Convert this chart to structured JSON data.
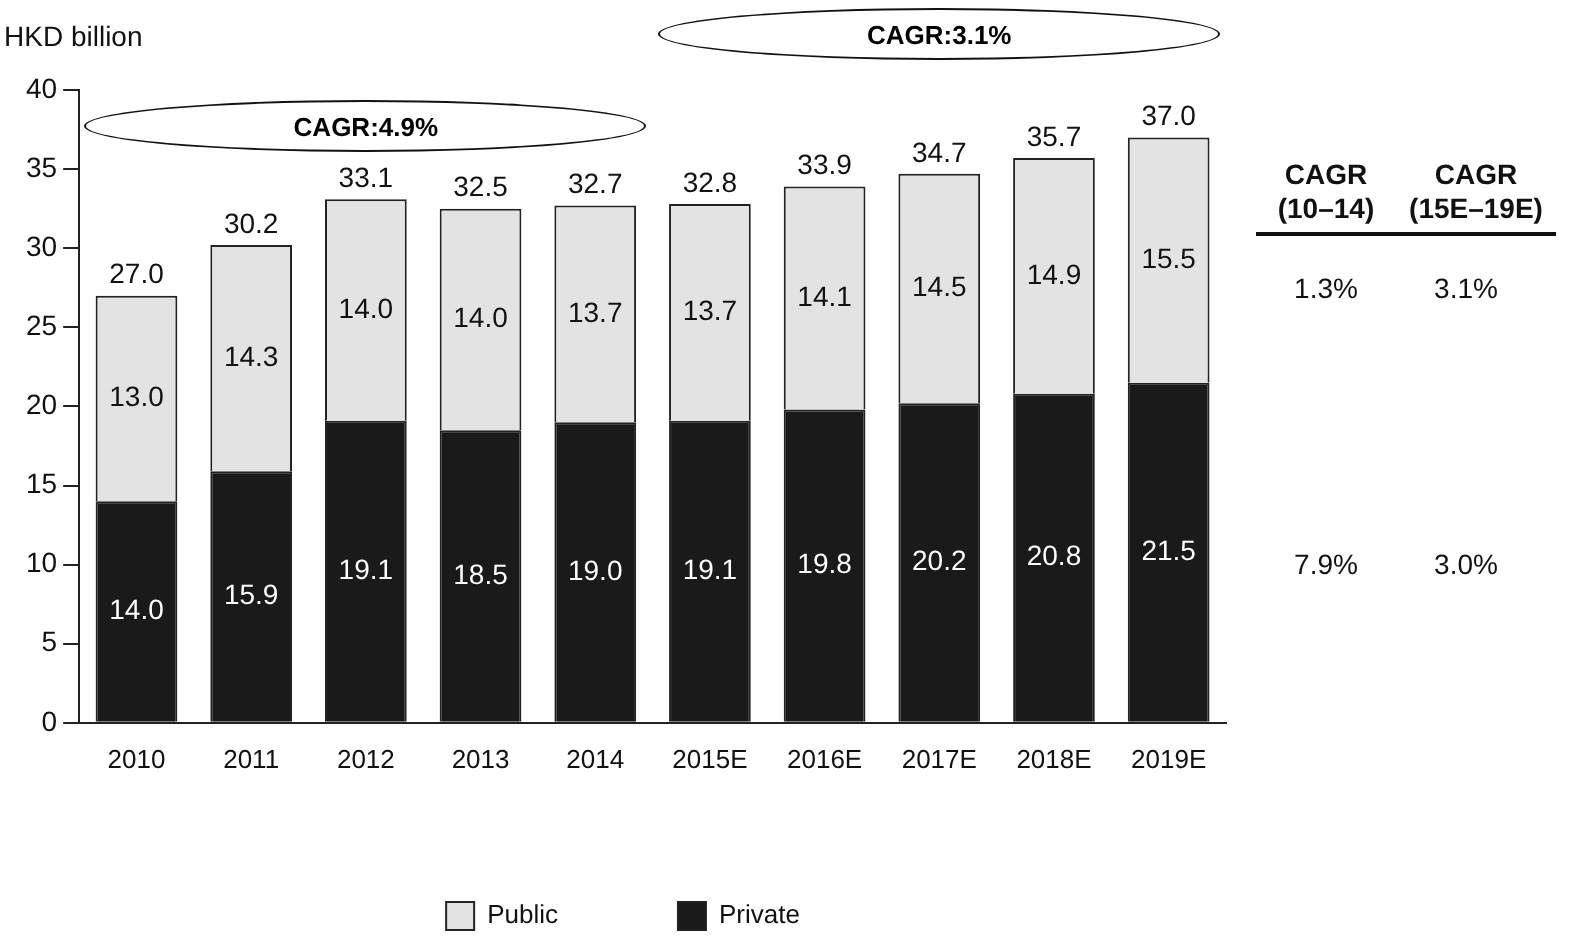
{
  "chart_data": {
    "type": "bar",
    "stacked": true,
    "ylabel": "HKD billion",
    "categories": [
      "2010",
      "2011",
      "2012",
      "2013",
      "2014",
      "2015E",
      "2016E",
      "2017E",
      "2018E",
      "2019E"
    ],
    "series": [
      {
        "name": "Private",
        "color": "#1a1a1a",
        "values": [
          14.0,
          15.9,
          19.1,
          18.5,
          19.0,
          19.1,
          19.8,
          20.2,
          20.8,
          21.5
        ],
        "value_labels": [
          "14.0",
          "15.9",
          "19.1",
          "18.5",
          "19.0",
          "19.1",
          "19.8",
          "20.2",
          "20.8",
          "21.5"
        ]
      },
      {
        "name": "Public",
        "color": "#e3e3e3",
        "values": [
          13.0,
          14.3,
          14.0,
          14.0,
          13.7,
          13.7,
          14.1,
          14.5,
          14.9,
          15.5
        ],
        "value_labels": [
          "13.0",
          "14.3",
          "14.0",
          "14.0",
          "13.7",
          "13.7",
          "14.1",
          "14.5",
          "14.9",
          "15.5"
        ]
      }
    ],
    "totals": [
      "27.0",
      "30.2",
      "33.1",
      "32.5",
      "32.7",
      "32.8",
      "33.9",
      "34.7",
      "35.7",
      "37.0"
    ],
    "ylim": [
      0,
      40
    ],
    "yticks": [
      0,
      5,
      10,
      15,
      20,
      25,
      30,
      35,
      40
    ],
    "grid": false,
    "legend": "bottom",
    "annotations": [
      "CAGR:4.9%",
      "CAGR:3.1%",
      "CAGR (10–14)",
      "CAGR (15E–19E)",
      "1.3%",
      "3.1%",
      "7.9%",
      "3.0%"
    ]
  }
}
